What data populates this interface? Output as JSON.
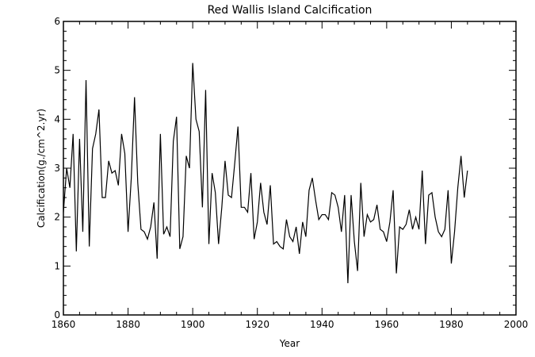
{
  "chart_data": {
    "type": "line",
    "title": "Red Wallis Island Calcification",
    "xlabel": "Year",
    "ylabel": "Calcification(g./cm^2.yr)",
    "xlim": [
      1860,
      2000
    ],
    "ylim": [
      0,
      6
    ],
    "xticks": [
      1860,
      1880,
      1900,
      1920,
      1940,
      1960,
      1980,
      2000
    ],
    "yticks": [
      0,
      1,
      2,
      3,
      4,
      5,
      6
    ],
    "grid": false,
    "line_color": "#000000",
    "series": [
      {
        "x": [
          1860,
          1861,
          1862,
          1863,
          1864,
          1865,
          1866,
          1867,
          1868,
          1869,
          1870,
          1871,
          1872,
          1873,
          1874,
          1875,
          1876,
          1877,
          1878,
          1879,
          1880,
          1881,
          1882,
          1883,
          1884,
          1885,
          1886,
          1887,
          1888,
          1889,
          1890,
          1891,
          1892,
          1893,
          1894,
          1895,
          1896,
          1897,
          1898,
          1899,
          1900,
          1901,
          1902,
          1903,
          1904,
          1905,
          1906,
          1907,
          1908,
          1909,
          1910,
          1911,
          1912,
          1913,
          1914,
          1915,
          1916,
          1917,
          1918,
          1919,
          1920,
          1921,
          1922,
          1923,
          1924,
          1925,
          1926,
          1927,
          1928,
          1929,
          1930,
          1931,
          1932,
          1933,
          1934,
          1935,
          1936,
          1937,
          1938,
          1939,
          1940,
          1941,
          1942,
          1943,
          1944,
          1945,
          1946,
          1947,
          1948,
          1949,
          1950,
          1951,
          1952,
          1953,
          1954,
          1955,
          1956,
          1957,
          1958,
          1959,
          1960,
          1961,
          1962,
          1963,
          1964,
          1965,
          1966,
          1967,
          1968,
          1969,
          1970,
          1971,
          1972,
          1973,
          1974,
          1975,
          1976,
          1977,
          1978,
          1979,
          1980,
          1981,
          1982,
          1983,
          1984,
          1985
        ],
        "values": [
          2.1,
          3.0,
          2.6,
          3.7,
          1.3,
          3.6,
          1.7,
          4.8,
          1.4,
          3.4,
          3.7,
          4.2,
          2.4,
          2.4,
          3.15,
          2.9,
          2.95,
          2.65,
          3.7,
          3.3,
          1.7,
          2.8,
          4.45,
          2.7,
          1.75,
          1.7,
          1.55,
          1.8,
          2.3,
          1.15,
          3.7,
          1.65,
          1.8,
          1.6,
          3.55,
          4.05,
          1.35,
          1.6,
          3.25,
          3.0,
          5.15,
          4.0,
          3.75,
          2.2,
          4.6,
          1.45,
          2.9,
          2.5,
          1.45,
          2.2,
          3.15,
          2.45,
          2.4,
          3.1,
          3.85,
          2.2,
          2.2,
          2.1,
          2.9,
          1.55,
          1.9,
          2.7,
          2.1,
          1.85,
          2.65,
          1.45,
          1.5,
          1.4,
          1.35,
          1.95,
          1.6,
          1.5,
          1.8,
          1.25,
          1.9,
          1.6,
          2.55,
          2.8,
          2.35,
          1.95,
          2.05,
          2.05,
          1.95,
          2.5,
          2.45,
          2.2,
          1.7,
          2.45,
          0.65,
          2.45,
          1.5,
          0.9,
          2.7,
          1.6,
          2.05,
          1.9,
          1.95,
          2.25,
          1.75,
          1.7,
          1.5,
          1.9,
          2.55,
          0.85,
          1.8,
          1.75,
          1.85,
          2.15,
          1.75,
          2.0,
          1.75,
          2.95,
          1.45,
          2.45,
          2.5,
          2.0,
          1.7,
          1.6,
          1.75,
          2.55,
          1.05,
          1.7,
          2.6,
          3.25,
          2.4,
          2.95
        ]
      }
    ]
  }
}
